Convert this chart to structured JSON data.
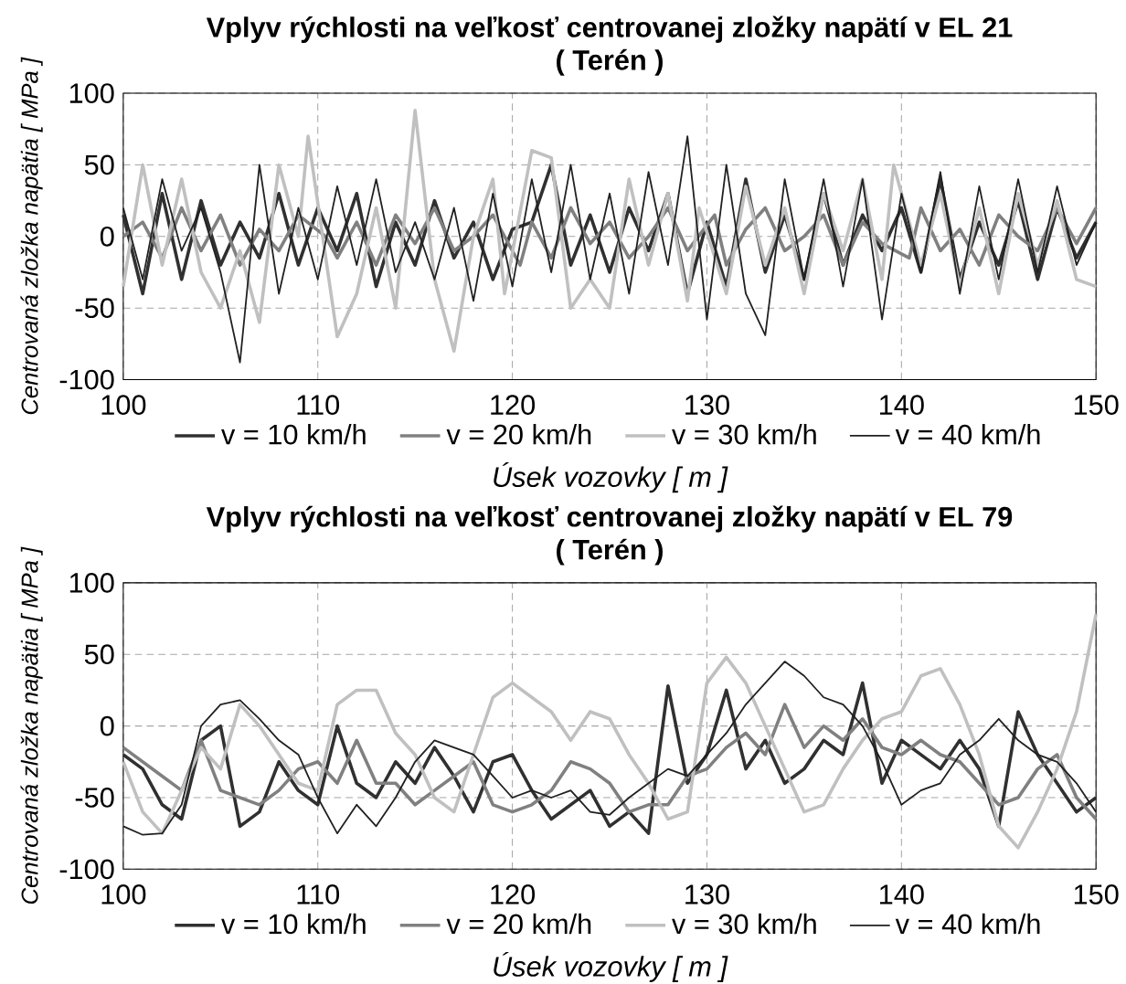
{
  "chart_data": [
    {
      "type": "line",
      "title": "Vplyv rýchlosti na veľkosť centrovanej zložky napätí v EL 21",
      "subtitle": "( Terén )",
      "xlabel": "Úsek vozovky [ m ]",
      "ylabel": "Centrovaná zložka napätia [ MPa ]",
      "x": [
        100,
        101,
        102,
        103,
        104,
        105,
        106,
        107,
        108,
        109,
        110,
        111,
        112,
        113,
        114,
        115,
        116,
        117,
        118,
        119,
        120,
        121,
        122,
        123,
        124,
        125,
        126,
        127,
        128,
        129,
        130,
        131,
        132,
        133,
        134,
        135,
        136,
        137,
        138,
        139,
        140,
        141,
        142,
        143,
        144,
        145,
        146,
        147,
        148,
        149,
        150
      ],
      "xlim": [
        100,
        150
      ],
      "ylim": [
        -100,
        100
      ],
      "xticks": [
        100,
        110,
        120,
        130,
        140,
        150
      ],
      "yticks": [
        -100,
        -50,
        0,
        50,
        100
      ],
      "grid": true,
      "legend": "bottom",
      "series": [
        {
          "name": "v = 10 km/h",
          "color": "#303030",
          "values": [
            15,
            -40,
            30,
            -30,
            25,
            -20,
            10,
            -15,
            30,
            -20,
            20,
            -10,
            30,
            -35,
            10,
            -20,
            25,
            -15,
            10,
            -30,
            5,
            10,
            50,
            -20,
            15,
            -25,
            20,
            -10,
            30,
            -40,
            10,
            -35,
            40,
            -25,
            15,
            -30,
            30,
            -20,
            15,
            -10,
            20,
            -25,
            40,
            -30,
            10,
            -20,
            25,
            -30,
            20,
            -15,
            10
          ]
        },
        {
          "name": "v = 20 km/h",
          "color": "#808080",
          "x": [
            100,
            101,
            102,
            103,
            104,
            105,
            106,
            107,
            108,
            109,
            110.4,
            111,
            112,
            113,
            114,
            115,
            116,
            117,
            118,
            119,
            120.4,
            121,
            122,
            123,
            124,
            125,
            126,
            127,
            128,
            129,
            130.4,
            131,
            132,
            133,
            134,
            135,
            136,
            137,
            138,
            139,
            140.4,
            141,
            142,
            143,
            144,
            145,
            146,
            147,
            148,
            149,
            150
          ],
          "values": [
            0,
            10,
            -15,
            20,
            -10,
            15,
            -20,
            5,
            -10,
            15,
            0,
            -15,
            10,
            -20,
            15,
            -5,
            20,
            -10,
            0,
            15,
            -20,
            10,
            -15,
            20,
            -5,
            10,
            -15,
            0,
            20,
            -10,
            15,
            -20,
            5,
            20,
            -10,
            0,
            15,
            -20,
            10,
            -5,
            -15,
            20,
            -10,
            5,
            -20,
            15,
            0,
            -10,
            20,
            -5,
            20
          ]
        },
        {
          "name": "v = 30 km/h",
          "color": "#c0c0c0",
          "x": [
            100,
            101,
            102,
            103,
            104,
            105,
            106,
            107,
            108,
            109,
            109.5,
            111,
            112,
            113,
            114,
            115,
            116,
            117,
            118,
            119,
            119.6,
            121,
            122,
            123,
            124,
            125,
            126,
            127,
            128,
            129,
            129.6,
            131,
            132,
            133,
            134,
            135,
            136,
            137,
            138,
            139,
            139.6,
            141,
            142,
            143,
            144,
            145,
            146,
            147,
            148,
            149,
            150
          ],
          "values": [
            -35,
            50,
            -20,
            40,
            -25,
            -50,
            -10,
            -60,
            50,
            0,
            70,
            -70,
            -40,
            20,
            -50,
            88,
            -30,
            -80,
            0,
            40,
            -40,
            60,
            55,
            -50,
            -30,
            -50,
            40,
            -20,
            30,
            -45,
            20,
            -40,
            35,
            -20,
            20,
            -40,
            30,
            -10,
            40,
            -30,
            50,
            -20,
            30,
            -35,
            20,
            -40,
            30,
            -20,
            25,
            -30,
            -35
          ]
        },
        {
          "name": "v = 40 km/h",
          "color": "#202020",
          "values": [
            20,
            -30,
            40,
            -10,
            20,
            -25,
            -88,
            50,
            -40,
            20,
            -30,
            35,
            -20,
            40,
            -25,
            10,
            -30,
            20,
            -45,
            30,
            -35,
            40,
            -25,
            50,
            -30,
            30,
            -40,
            45,
            -20,
            70,
            -58,
            50,
            -40,
            -69,
            40,
            -30,
            40,
            -35,
            40,
            -58,
            30,
            -25,
            45,
            -40,
            35,
            -30,
            40,
            -25,
            35,
            -20,
            10
          ]
        }
      ]
    },
    {
      "type": "line",
      "title": "Vplyv rýchlosti na veľkosť centrovanej zložky napätí v EL 79",
      "subtitle": "( Terén )",
      "xlabel": "Úsek vozovky [ m ]",
      "ylabel": "Centrovaná zložka napätia [ MPa ]",
      "x": [
        100,
        101,
        102,
        103,
        104,
        105,
        106,
        107,
        108,
        109,
        110,
        111,
        112,
        113,
        114,
        115,
        116,
        117,
        118,
        119,
        120,
        121,
        122,
        123,
        124,
        125,
        126,
        127,
        128,
        129,
        130,
        131,
        132,
        133,
        134,
        135,
        136,
        137,
        138,
        139,
        140,
        141,
        142,
        143,
        144,
        145,
        146,
        147,
        148,
        149,
        150
      ],
      "xlim": [
        100,
        150
      ],
      "ylim": [
        -100,
        100
      ],
      "xticks": [
        100,
        110,
        120,
        130,
        140,
        150
      ],
      "yticks": [
        -100,
        -50,
        0,
        50,
        100
      ],
      "grid": true,
      "legend": "bottom",
      "series": [
        {
          "name": "v = 10 km/h",
          "color": "#303030",
          "values": [
            -20,
            -30,
            -55,
            -65,
            -10,
            0,
            -70,
            -60,
            -25,
            -45,
            -55,
            0,
            -40,
            -50,
            -25,
            -40,
            -15,
            -35,
            -60,
            -25,
            -20,
            -45,
            -65,
            -55,
            -45,
            -70,
            -60,
            -75,
            28,
            -40,
            -20,
            25,
            -30,
            -10,
            -40,
            -30,
            -10,
            -20,
            30,
            -40,
            -10,
            -20,
            -30,
            -10,
            -30,
            -70,
            10,
            -20,
            -40,
            -60,
            -50
          ]
        },
        {
          "name": "v = 20 km/h",
          "color": "#808080",
          "values": [
            -15,
            -25,
            -35,
            -45,
            -10,
            -45,
            -50,
            -55,
            -45,
            -30,
            -25,
            -40,
            -10,
            -40,
            -40,
            -55,
            -45,
            -35,
            -25,
            -55,
            -60,
            -55,
            -45,
            -25,
            -30,
            -40,
            -60,
            -55,
            -55,
            -35,
            -30,
            -15,
            -5,
            -20,
            15,
            -15,
            0,
            -10,
            5,
            -15,
            -20,
            -10,
            -20,
            -25,
            -40,
            -55,
            -50,
            -30,
            -20,
            -50,
            -65
          ]
        },
        {
          "name": "v = 30 km/h",
          "color": "#c0c0c0",
          "values": [
            -25,
            -60,
            -75,
            -45,
            -15,
            -30,
            15,
            0,
            -20,
            -40,
            -45,
            15,
            25,
            25,
            -5,
            -20,
            -50,
            -60,
            -20,
            20,
            30,
            20,
            10,
            -10,
            10,
            5,
            -20,
            -40,
            -65,
            -60,
            30,
            48,
            30,
            0,
            -30,
            -60,
            -55,
            -30,
            -10,
            5,
            10,
            35,
            40,
            15,
            -20,
            -70,
            -85,
            -60,
            -30,
            10,
            78
          ]
        },
        {
          "name": "v = 40 km/h",
          "color": "#202020",
          "values": [
            -70,
            -76,
            -75,
            -55,
            0,
            15,
            18,
            5,
            -10,
            -20,
            -50,
            -75,
            -55,
            -70,
            -50,
            -25,
            -10,
            -15,
            -20,
            -35,
            -50,
            -45,
            -50,
            -45,
            -60,
            -62,
            -50,
            -40,
            -30,
            -35,
            -20,
            -5,
            15,
            30,
            45,
            35,
            20,
            15,
            0,
            -25,
            -55,
            -45,
            -40,
            -20,
            -10,
            5,
            -10,
            -20,
            -25,
            -40,
            -60
          ]
        }
      ]
    }
  ]
}
